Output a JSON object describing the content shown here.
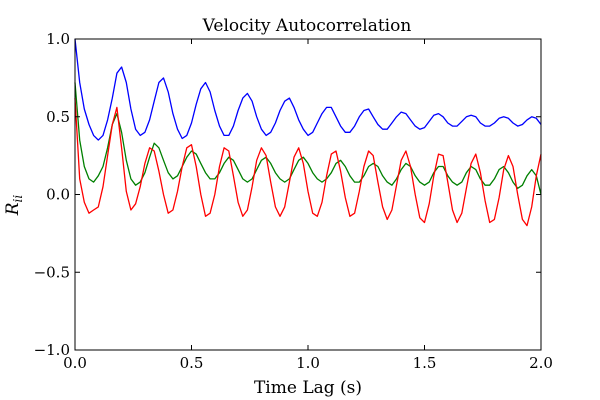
{
  "chart_data": {
    "type": "line",
    "title": "Velocity Autocorrelation",
    "xlabel": "Time Lag (s)",
    "ylabel": "R",
    "ylabel_subscript": "ii",
    "xlim": [
      0.0,
      2.0
    ],
    "ylim": [
      -1.0,
      1.0
    ],
    "xticks": [
      0.0,
      0.5,
      1.0,
      1.5,
      2.0
    ],
    "xtick_labels": [
      "0.0",
      "0.5",
      "1.0",
      "1.5",
      "2.0"
    ],
    "yticks": [
      -1.0,
      -0.5,
      0.0,
      0.5,
      1.0
    ],
    "ytick_labels": [
      "−1.0",
      "−0.5",
      "0.0",
      "0.5",
      "1.0"
    ],
    "grid": false,
    "x": [
      0.0,
      0.02,
      0.04,
      0.06,
      0.08,
      0.1,
      0.12,
      0.14,
      0.16,
      0.18,
      0.2,
      0.22,
      0.24,
      0.26,
      0.28,
      0.3,
      0.32,
      0.34,
      0.36,
      0.38,
      0.4,
      0.42,
      0.44,
      0.46,
      0.48,
      0.5,
      0.52,
      0.54,
      0.56,
      0.58,
      0.6,
      0.62,
      0.64,
      0.66,
      0.68,
      0.7,
      0.72,
      0.74,
      0.76,
      0.78,
      0.8,
      0.82,
      0.84,
      0.86,
      0.88,
      0.9,
      0.92,
      0.94,
      0.96,
      0.98,
      1.0,
      1.02,
      1.04,
      1.06,
      1.08,
      1.1,
      1.12,
      1.14,
      1.16,
      1.18,
      1.2,
      1.22,
      1.24,
      1.26,
      1.28,
      1.3,
      1.32,
      1.34,
      1.36,
      1.38,
      1.4,
      1.42,
      1.44,
      1.46,
      1.48,
      1.5,
      1.52,
      1.54,
      1.56,
      1.58,
      1.6,
      1.62,
      1.64,
      1.66,
      1.68,
      1.7,
      1.72,
      1.74,
      1.76,
      1.78,
      1.8,
      1.82,
      1.84,
      1.86,
      1.88,
      1.9,
      1.92,
      1.94,
      1.96,
      1.98,
      2.0
    ],
    "series": [
      {
        "color": "#0000ff",
        "values": [
          1.0,
          0.72,
          0.55,
          0.45,
          0.38,
          0.35,
          0.38,
          0.48,
          0.62,
          0.78,
          0.82,
          0.72,
          0.55,
          0.42,
          0.38,
          0.4,
          0.48,
          0.6,
          0.72,
          0.75,
          0.66,
          0.52,
          0.42,
          0.36,
          0.38,
          0.46,
          0.58,
          0.68,
          0.72,
          0.66,
          0.54,
          0.44,
          0.38,
          0.38,
          0.44,
          0.54,
          0.62,
          0.65,
          0.6,
          0.5,
          0.42,
          0.38,
          0.4,
          0.46,
          0.54,
          0.6,
          0.62,
          0.56,
          0.48,
          0.42,
          0.38,
          0.4,
          0.46,
          0.52,
          0.56,
          0.56,
          0.5,
          0.44,
          0.4,
          0.4,
          0.44,
          0.5,
          0.54,
          0.55,
          0.5,
          0.45,
          0.42,
          0.42,
          0.46,
          0.5,
          0.53,
          0.52,
          0.48,
          0.44,
          0.42,
          0.43,
          0.47,
          0.51,
          0.52,
          0.5,
          0.46,
          0.44,
          0.44,
          0.47,
          0.5,
          0.51,
          0.5,
          0.46,
          0.44,
          0.44,
          0.46,
          0.49,
          0.5,
          0.49,
          0.46,
          0.44,
          0.45,
          0.48,
          0.5,
          0.49,
          0.45
        ]
      },
      {
        "color": "#008000",
        "values": [
          0.72,
          0.35,
          0.18,
          0.1,
          0.08,
          0.12,
          0.18,
          0.3,
          0.45,
          0.52,
          0.4,
          0.22,
          0.1,
          0.06,
          0.08,
          0.14,
          0.24,
          0.33,
          0.3,
          0.22,
          0.14,
          0.1,
          0.12,
          0.18,
          0.24,
          0.28,
          0.26,
          0.2,
          0.14,
          0.1,
          0.1,
          0.14,
          0.2,
          0.24,
          0.22,
          0.16,
          0.1,
          0.08,
          0.1,
          0.16,
          0.22,
          0.24,
          0.2,
          0.14,
          0.1,
          0.08,
          0.1,
          0.16,
          0.22,
          0.24,
          0.2,
          0.14,
          0.1,
          0.08,
          0.1,
          0.14,
          0.2,
          0.22,
          0.18,
          0.12,
          0.08,
          0.08,
          0.12,
          0.18,
          0.2,
          0.18,
          0.12,
          0.08,
          0.06,
          0.1,
          0.16,
          0.2,
          0.18,
          0.12,
          0.08,
          0.06,
          0.08,
          0.14,
          0.18,
          0.18,
          0.12,
          0.08,
          0.06,
          0.08,
          0.14,
          0.18,
          0.16,
          0.1,
          0.06,
          0.06,
          0.1,
          0.16,
          0.18,
          0.14,
          0.08,
          0.04,
          0.06,
          0.12,
          0.16,
          0.12,
          0.0
        ]
      },
      {
        "color": "#ff0000",
        "values": [
          0.62,
          0.1,
          -0.05,
          -0.12,
          -0.1,
          -0.08,
          0.05,
          0.25,
          0.45,
          0.56,
          0.3,
          0.02,
          -0.1,
          -0.06,
          0.05,
          0.2,
          0.3,
          0.28,
          0.15,
          0.0,
          -0.12,
          -0.1,
          0.02,
          0.18,
          0.3,
          0.32,
          0.18,
          0.0,
          -0.14,
          -0.12,
          0.0,
          0.18,
          0.3,
          0.28,
          0.12,
          -0.05,
          -0.14,
          -0.1,
          0.05,
          0.22,
          0.3,
          0.25,
          0.08,
          -0.08,
          -0.14,
          -0.08,
          0.08,
          0.24,
          0.3,
          0.2,
          0.02,
          -0.12,
          -0.14,
          -0.05,
          0.12,
          0.26,
          0.28,
          0.15,
          -0.02,
          -0.14,
          -0.12,
          0.02,
          0.18,
          0.28,
          0.25,
          0.08,
          -0.08,
          -0.16,
          -0.1,
          0.06,
          0.22,
          0.28,
          0.18,
          0.0,
          -0.15,
          -0.18,
          -0.06,
          0.12,
          0.26,
          0.25,
          0.08,
          -0.1,
          -0.18,
          -0.12,
          0.04,
          0.2,
          0.26,
          0.14,
          -0.04,
          -0.18,
          -0.16,
          -0.02,
          0.16,
          0.25,
          0.18,
          0.0,
          -0.16,
          -0.2,
          -0.08,
          0.12,
          0.26
        ]
      }
    ]
  }
}
